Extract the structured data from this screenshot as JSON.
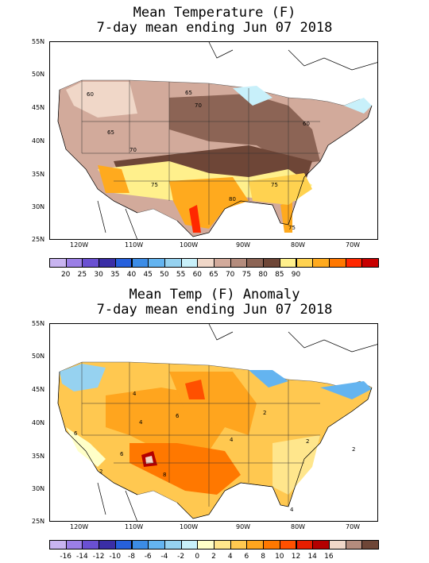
{
  "top_panel": {
    "title_line1": "Mean Temperature (F)",
    "title_line2": "7-day mean ending Jun 07 2018",
    "lat_labels": [
      "55N",
      "50N",
      "45N",
      "40N",
      "35N",
      "30N",
      "25N"
    ],
    "lon_labels": [
      "120W",
      "110W",
      "100W",
      "90W",
      "80W",
      "70W"
    ],
    "contour_labels": [
      "60",
      "65",
      "70",
      "65",
      "70",
      "75",
      "75",
      "80",
      "75",
      "60"
    ],
    "colorbar": {
      "colors": [
        "#c8b4f0",
        "#9b7fe6",
        "#6a50d2",
        "#3a2ea6",
        "#2660dc",
        "#3c8ce6",
        "#64b4f0",
        "#96d2f0",
        "#c8f0fa",
        "#f0d7c8",
        "#d2aa9b",
        "#b48c7d",
        "#8c6455",
        "#6e4637",
        "#fff08c",
        "#ffd250",
        "#ffaa1e",
        "#ff7800",
        "#ff2800",
        "#c80000"
      ],
      "tick_labels": [
        "20",
        "25",
        "30",
        "35",
        "40",
        "45",
        "50",
        "55",
        "60",
        "65",
        "70",
        "75",
        "80",
        "85",
        "90"
      ]
    }
  },
  "bottom_panel": {
    "title_line1": "Mean Temp (F) Anomaly",
    "title_line2": "7-day mean ending Jun 07 2018",
    "lat_labels": [
      "55N",
      "50N",
      "45N",
      "40N",
      "35N",
      "30N",
      "25N"
    ],
    "lon_labels": [
      "120W",
      "110W",
      "100W",
      "90W",
      "80W",
      "70W"
    ],
    "contour_labels": [
      "4",
      "6",
      "6",
      "2",
      "4",
      "4",
      "6",
      "8",
      "2",
      "2",
      "2",
      "4"
    ],
    "colorbar": {
      "colors": [
        "#c8b4f0",
        "#9b7fe6",
        "#6a50d2",
        "#3a2ea6",
        "#2660dc",
        "#3c8ce6",
        "#64b4f0",
        "#96d2f0",
        "#c8f0fa",
        "#ffffc8",
        "#ffe68c",
        "#ffc850",
        "#ffa51e",
        "#ff7800",
        "#ff5000",
        "#e61e00",
        "#b40000",
        "#f0d7c8",
        "#b48c7d",
        "#6e4637"
      ],
      "tick_labels": [
        "-16",
        "-14",
        "-12",
        "-10",
        "-8",
        "-6",
        "-4",
        "-2",
        "0",
        "2",
        "4",
        "6",
        "8",
        "10",
        "12",
        "14",
        "16"
      ]
    }
  }
}
